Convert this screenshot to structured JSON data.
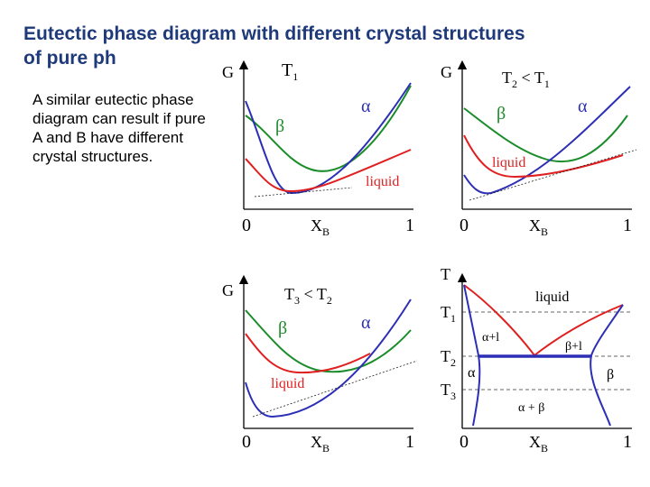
{
  "title": "Eutectic phase diagram with different crystal structures of pure ph",
  "description": "A similar eutectic phase diagram can result if pure A and B have different crystal structures.",
  "colors": {
    "title": "#1f3a7a",
    "beta": "#1a8c2a",
    "alpha": "#2c2fb5",
    "liquid": "#e02020",
    "axis": "#000000"
  },
  "panel1": {
    "axis_y": "G",
    "temp": "T",
    "temp_sub": "1",
    "label_beta": "β",
    "label_alpha": "α",
    "label_liquid": "liquid",
    "x0": "0",
    "xlabel": "X",
    "xsub": "B",
    "x1": "1"
  },
  "panel2": {
    "axis_y": "G",
    "temp_a": "T",
    "temp_a_sub": "2",
    "temp_op": "< T",
    "temp_b_sub": "1",
    "label_beta": "β",
    "label_alpha": "α",
    "label_liquid": "liquid",
    "x0": "0",
    "xlabel": "X",
    "xsub": "B",
    "x1": "1"
  },
  "panel3": {
    "axis_y": "G",
    "temp_a": "T",
    "temp_a_sub": "3",
    "temp_op": "< T",
    "temp_b_sub": "2",
    "label_beta": "β",
    "label_alpha": "α",
    "label_liquid": "liquid",
    "x0": "0",
    "xlabel": "X",
    "xsub": "B",
    "x1": "1"
  },
  "panel4": {
    "axis_y": "T",
    "t1": "T",
    "t1_sub": "1",
    "t2": "T",
    "t2_sub": "2",
    "t3": "T",
    "t3_sub": "3",
    "region_liquid": "liquid",
    "region_alpha_l": "α+l",
    "region_beta_l": "β+l",
    "region_alpha": "α",
    "region_beta": "β",
    "region_alpha_beta": "α + β",
    "x0": "0",
    "xlabel": "X",
    "xsub": "B",
    "x1": "1"
  }
}
